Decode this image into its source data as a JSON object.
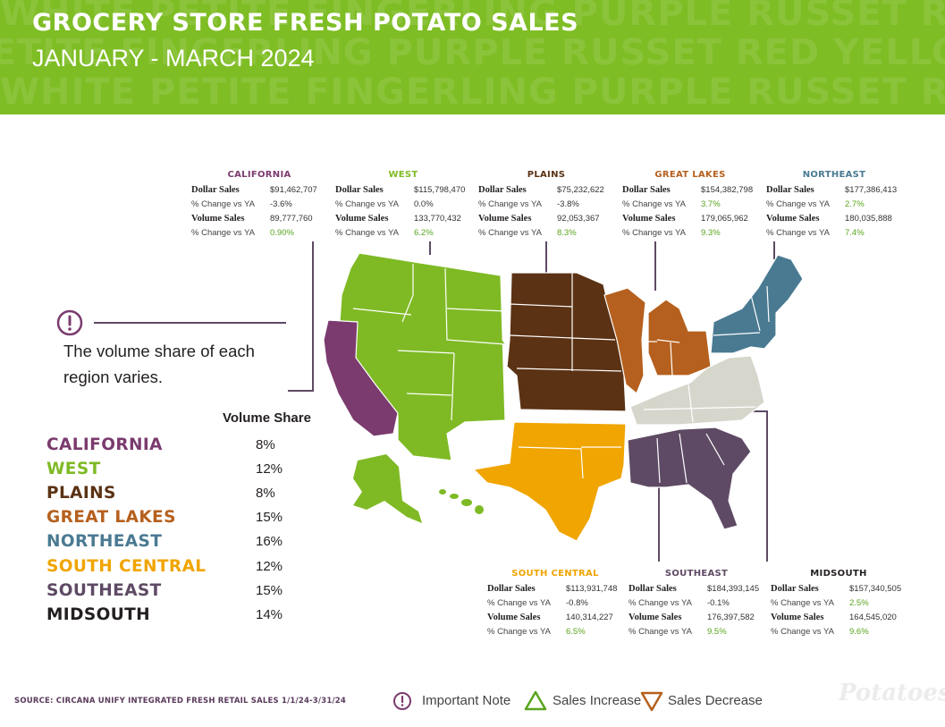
{
  "header": {
    "title": "GROCERY STORE  FRESH POTATO SALES",
    "subtitle": "JANUARY - MARCH 2024",
    "bg_words": [
      "WHITE PETITE FINGERLING PURPLE RUSSET RED YELLOW WHITE PETITE",
      "PETITE FINGERLING PURPLE RUSSET RED YELLOW WHITE PETITE FINGERLING",
      "WHITE PETITE FINGERLING PURPLE RUSSET RED YELLOW WHITE PETITE"
    ]
  },
  "colors": {
    "header_green": "#7ebd24",
    "california": "#7b3b6e",
    "west": "#7fba25",
    "plains": "#5b3214",
    "great_lakes": "#b5601e",
    "northeast": "#4a7a92",
    "south_central": "#f0a500",
    "southeast": "#5e4a64",
    "midsouth": "#d7d6cc",
    "increase": "#5aa51e",
    "decrease": "#b5601e",
    "note": "#7b3b6e"
  },
  "labels": {
    "dollar_sales": "Dollar Sales",
    "pct_change": "% Change vs YA",
    "volume_sales": "Volume Sales"
  },
  "regions": {
    "california": {
      "name": "CALIFORNIA",
      "dollar": "$91,462,707",
      "dollar_change": "-3.6%",
      "volume": "89,777,760",
      "volume_change": "0.90%"
    },
    "west": {
      "name": "WEST",
      "dollar": "$115,798,470",
      "dollar_change": "0.0%",
      "volume": "133,770,432",
      "volume_change": "6.2%"
    },
    "plains": {
      "name": "PLAINS",
      "dollar": "$75,232,622",
      "dollar_change": "-3.8%",
      "volume": "92,053,367",
      "volume_change": "8.3%"
    },
    "great_lakes": {
      "name": "GREAT LAKES",
      "dollar": "$154,382,798",
      "dollar_change": "3.7%",
      "volume": "179,065,962",
      "volume_change": "9.3%"
    },
    "northeast": {
      "name": "NORTHEAST",
      "dollar": "$177,386,413",
      "dollar_change": "2.7%",
      "volume": "180,035,888",
      "volume_change": "7.4%"
    },
    "south_central": {
      "name": "SOUTH CENTRAL",
      "dollar": "$113,931,748",
      "dollar_change": "-0.8%",
      "volume": "140,314,227",
      "volume_change": "6.5%"
    },
    "southeast": {
      "name": "SOUTHEAST",
      "dollar": "$184,393,145",
      "dollar_change": "-0.1%",
      "volume": "176,397,582",
      "volume_change": "9.5%"
    },
    "midsouth": {
      "name": "MIDSOUTH",
      "dollar": "$157,340,505",
      "dollar_change": "2.5%",
      "volume": "164,545,020",
      "volume_change": "9.6%"
    }
  },
  "note": {
    "text_line1": "The volume share of each",
    "text_line2": "region varies."
  },
  "volume_share": {
    "header": "Volume Share",
    "rows": [
      {
        "name": "CALIFORNIA",
        "value": "8%",
        "color": "#7b3b6e"
      },
      {
        "name": "WEST",
        "value": "12%",
        "color": "#7fba25"
      },
      {
        "name": "PLAINS",
        "value": "8%",
        "color": "#5b3214"
      },
      {
        "name": "GREAT LAKES",
        "value": "15%",
        "color": "#b5601e"
      },
      {
        "name": "NORTHEAST",
        "value": "16%",
        "color": "#4a7a92"
      },
      {
        "name": "SOUTH CENTRAL",
        "value": "12%",
        "color": "#f0a500"
      },
      {
        "name": "SOUTHEAST",
        "value": "15%",
        "color": "#5e4a64"
      },
      {
        "name": "MIDSOUTH",
        "value": "14%",
        "color": "#231f20"
      }
    ]
  },
  "footer": {
    "source": "SOURCE: CIRCANA UNIFY INTEGRATED FRESH  RETAIL SALES 1/1/24-3/31/24",
    "legend_note": "Important Note",
    "legend_increase": "Sales Increase",
    "legend_decrease": "Sales Decrease",
    "logo": "Potatoes USA"
  }
}
